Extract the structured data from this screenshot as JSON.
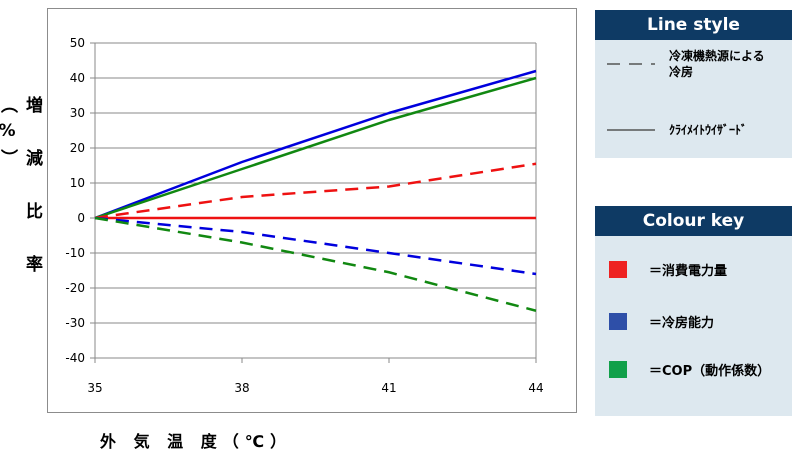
{
  "chart_data": {
    "type": "line",
    "xlabel": "外 気 温 度（℃）",
    "ylabel": "増 減 比 率（%）",
    "x": [
      35,
      38,
      41,
      44
    ],
    "xlim": [
      35,
      44
    ],
    "ylim": [
      -40,
      50
    ],
    "y_ticks": [
      50,
      40,
      30,
      20,
      10,
      0,
      -10,
      -20,
      -30,
      -40
    ],
    "x_ticks": [
      35,
      38,
      41,
      44
    ],
    "grid": true,
    "series": [
      {
        "color": "#0000dd",
        "dash": "solid",
        "values": [
          0,
          16,
          30,
          42
        ]
      },
      {
        "color": "#118811",
        "dash": "solid",
        "values": [
          0,
          14,
          28,
          40
        ]
      },
      {
        "color": "#ee1111",
        "dash": "solid",
        "values": [
          0,
          0,
          0,
          0
        ]
      },
      {
        "color": "#ee1111",
        "dash": "dashed",
        "values": [
          0,
          6,
          9,
          15.5
        ]
      },
      {
        "color": "#0000dd",
        "dash": "dashed",
        "values": [
          0,
          -4,
          -10,
          -16
        ]
      },
      {
        "color": "#118811",
        "dash": "dashed",
        "values": [
          0,
          -7,
          -15.5,
          -26.5
        ]
      }
    ]
  },
  "legend_line": {
    "title": "Line style",
    "items": [
      {
        "style": "dashed",
        "label": "冷凍機熱源による冷房"
      },
      {
        "style": "solid",
        "label": "ｸﾗｲﾒｲﾄｳｲｻﾞｰﾄﾞ"
      }
    ]
  },
  "legend_colour": {
    "title": "Colour key",
    "items": [
      {
        "color": "#ee2222",
        "label": "＝消費電力量"
      },
      {
        "color": "#2e4fa8",
        "label": "＝冷房能力"
      },
      {
        "color": "#11a04a",
        "label": "＝COP（動作係数）"
      }
    ]
  }
}
